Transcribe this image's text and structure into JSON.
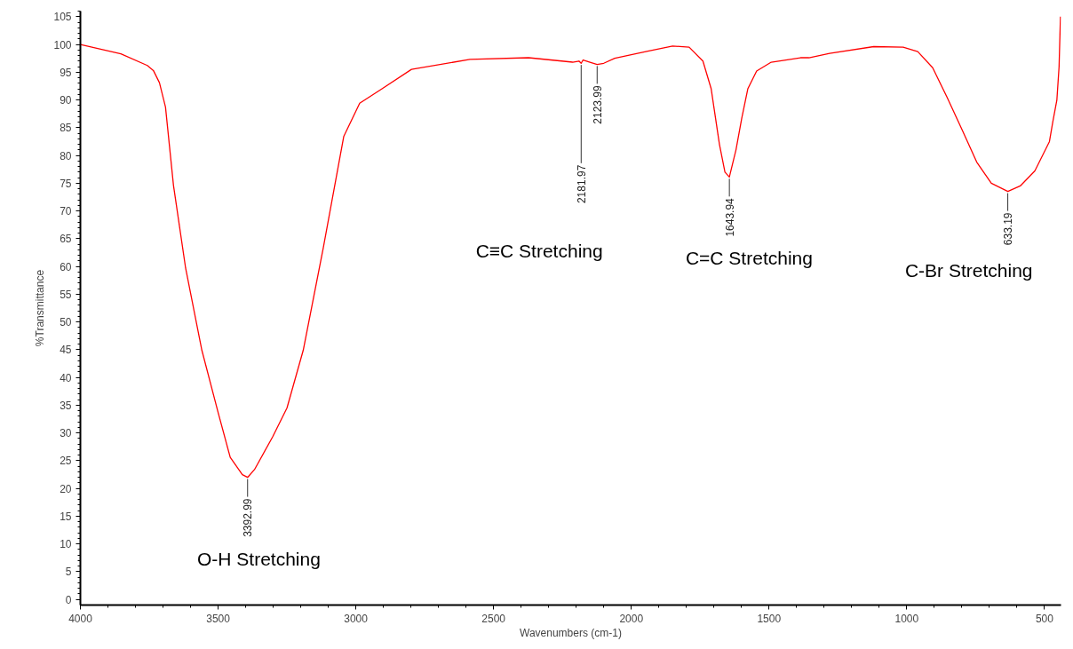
{
  "chart_data": {
    "type": "line",
    "xlabel": "Wavenumbers (cm-1)",
    "ylabel": "%Transmittance",
    "xlim": [
      4000,
      440
    ],
    "ylim": [
      -1,
      106
    ],
    "xticks": [
      4000,
      3500,
      3000,
      2500,
      2000,
      1500,
      1000,
      500
    ],
    "yticks": [
      0,
      5,
      10,
      15,
      20,
      25,
      30,
      35,
      40,
      45,
      50,
      55,
      60,
      65,
      70,
      75,
      80,
      85,
      90,
      95,
      100,
      105
    ],
    "grid": false,
    "marker": "none",
    "line_style": "solid",
    "series": [
      {
        "color": "#ff0000",
        "x": [
          4000,
          3853,
          3757,
          3735,
          3713,
          3691,
          3662,
          3618,
          3559,
          3500,
          3456,
          3412,
          3393,
          3368,
          3302,
          3250,
          3191,
          3118,
          3044,
          2986,
          2905,
          2798,
          2586,
          2373,
          2213,
          2190,
          2182,
          2175,
          2150,
          2124,
          2100,
          2060,
          1940,
          1850,
          1790,
          1740,
          1710,
          1680,
          1660,
          1644,
          1620,
          1599,
          1577,
          1545,
          1492,
          1386,
          1355,
          1280,
          1120,
          1013,
          960,
          906,
          853,
          799,
          746,
          693,
          633,
          588,
          535,
          482,
          470,
          455,
          447,
          442
        ],
        "values": [
          100,
          98.3,
          96.2,
          95.3,
          93.1,
          88.7,
          74.6,
          59.7,
          44.9,
          33.7,
          25.6,
          22.5,
          22,
          23.4,
          29.3,
          34.5,
          44.9,
          63.4,
          83.4,
          89.4,
          92.0,
          95.5,
          97.3,
          97.6,
          96.8,
          97.0,
          96.6,
          97.2,
          96.8,
          96.4,
          96.6,
          97.5,
          98.8,
          99.7,
          99.5,
          97,
          92,
          82,
          77,
          76.1,
          81,
          86.7,
          92.0,
          95.2,
          96.8,
          97.6,
          97.6,
          98.4,
          99.6,
          99.5,
          98.7,
          95.8,
          90.4,
          84.6,
          78.8,
          75.0,
          73.5,
          74.5,
          77.2,
          82.5,
          86,
          90,
          96,
          105
        ]
      }
    ],
    "annotations": [
      {
        "text": "3392.99",
        "x": 3392.99,
        "y": 22
      },
      {
        "text": "2181.97",
        "x": 2181.97,
        "y": 96.6
      },
      {
        "text": "2123.99",
        "x": 2123.99,
        "y": 96.4
      },
      {
        "text": "1643.94",
        "x": 1643.94,
        "y": 76.1
      },
      {
        "text": "633.19",
        "x": 633.19,
        "y": 73.5
      },
      "O-H Stretching",
      "C≡C Stretching",
      "C=C Stretching",
      "C-Br Stretching"
    ]
  }
}
